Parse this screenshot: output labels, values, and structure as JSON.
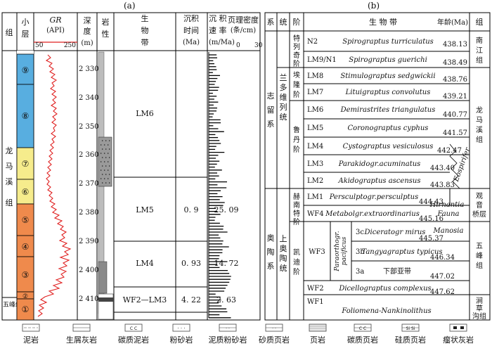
{
  "panel_a": {
    "label": "(a)",
    "headers": {
      "group": "组",
      "layer": [
        "小",
        "层"
      ],
      "gr": "GR",
      "gr_unit": "(API)",
      "gr_min": "50",
      "gr_max": "250",
      "depth": [
        "深",
        "度",
        "(m)"
      ],
      "lith": [
        "岩",
        "性"
      ],
      "biozone": [
        "生",
        "物",
        "带"
      ],
      "dep_time": [
        "沉积",
        "时间",
        "(Ma)"
      ],
      "dep_rate": [
        "沉 积",
        "速 率",
        "(m/Ma)"
      ],
      "lam": [
        "页理密度",
        "(条/cm)"
      ],
      "lam_min": "0",
      "lam_max": "30"
    },
    "group_longmaxi": [
      "龙",
      "马",
      "溪",
      "组"
    ],
    "group_wufeng": "五峰组",
    "layers": [
      "⑨",
      "⑧",
      "⑦",
      "⑥",
      "⑤",
      "④",
      "③",
      "②",
      "①"
    ],
    "depth_ticks": [
      "2 330",
      "2 340",
      "2 350",
      "2 360",
      "2 370",
      "2 380",
      "2 390",
      "2 400",
      "2 410"
    ],
    "zones": [
      {
        "name": "LM6",
        "time": "",
        "rate": ""
      },
      {
        "name": "LM5",
        "time": "0. 9",
        "rate": "25. 09"
      },
      {
        "name": "LM4",
        "time": "0. 93",
        "rate": "14. 72"
      },
      {
        "name": "WF2—LM3",
        "time": "4. 22",
        "rate": "2. 63"
      }
    ]
  },
  "panel_b": {
    "label": "(b)",
    "headers": {
      "system": "系",
      "series": "统",
      "stage": "阶",
      "zone": "生 物 带",
      "age": "年龄(Ma)",
      "group": "组"
    },
    "systems": {
      "silurian": [
        "志",
        "留",
        "系"
      ],
      "ordovician": [
        "奥",
        "陶",
        "系"
      ]
    },
    "series": {
      "llandovery": [
        "兰",
        "多",
        "维",
        "列",
        "统"
      ],
      "upper_ord": [
        "上",
        "奥",
        "陶",
        "统"
      ]
    },
    "stages": {
      "telychian": [
        "特",
        "列",
        "奇",
        "阶"
      ],
      "aeronian": [
        "埃",
        "隆",
        "阶"
      ],
      "rhuddanian": [
        "鲁",
        "丹",
        "阶"
      ],
      "hirnantian": [
        "赫",
        "南",
        "特",
        "阶"
      ],
      "katian": [
        "凯",
        "迪",
        "阶"
      ]
    },
    "zones": [
      {
        "code": "N2",
        "name": "Spirograptus turriculatus",
        "age": "438.13"
      },
      {
        "code": "LM9/N1",
        "name": "Spirograptus guerichi",
        "age": "438.49"
      },
      {
        "code": "LM8",
        "name": "Stimulograptus sedgwickii",
        "age": "438.76"
      },
      {
        "code": "LM7",
        "name": "Lituigraptus convolutus",
        "age": "439.21"
      },
      {
        "code": "LM6",
        "name": "Demirastrites triangulatus",
        "age": "440.77"
      },
      {
        "code": "LM5",
        "name": "Coronograptus cyphus",
        "age": "441.57"
      },
      {
        "code": "LM4",
        "name": "Cystograptus vesiculosus",
        "age": "442.47"
      },
      {
        "code": "LM3",
        "name": "Parakidogr.acuminatus",
        "age": "443.40"
      },
      {
        "code": "LM2",
        "name": "Akidograptus ascensus",
        "age": "443.83"
      },
      {
        "code": "LM1",
        "name": "Persculptogr.persculptus",
        "age": "444.43"
      },
      {
        "code": "WF4",
        "name": "Metabolgr.extraordinarius",
        "age": "445.16"
      },
      {
        "code": "3c",
        "name": "Diceratogr mirus",
        "age": "445.37"
      },
      {
        "code": "3b",
        "name": "Tangyagraptus typicus",
        "age": "446.34"
      },
      {
        "code": "3a",
        "name": "下部亚带",
        "age": "447.02"
      },
      {
        "code": "WF2",
        "name": "Dicellograptus complexus",
        "age": "447.62"
      },
      {
        "code": "WF1",
        "name": "Foliomena-Nankinolithus",
        "age": ""
      }
    ],
    "wf3": "WF3",
    "paraorthogr": [
      "Paraorthogr.",
      "pacificus"
    ],
    "hirnantia": [
      "Hirnantia",
      "Fauna"
    ],
    "manosia": "Manosia",
    "eospirifer": "Eospirifer",
    "groups": {
      "nanjiang": [
        "南",
        "江",
        "组"
      ],
      "longmaxi": [
        "龙",
        "马",
        "溪",
        "组"
      ],
      "guanyinqiao": [
        "观",
        "音",
        "桥层"
      ],
      "wufeng": [
        "五",
        "峰",
        "组"
      ],
      "jiancaogou": [
        "涧",
        "草",
        "沟组"
      ]
    }
  },
  "legend": [
    "泥岩",
    "生屑灰岩",
    "碳质泥岩",
    "粉砂岩",
    "泥质粉砂岩",
    "砂质页岩",
    "页岩",
    "碳质页岩",
    "硅质页岩",
    "瘤状灰岩"
  ],
  "colors": {
    "blue": "#58aee0",
    "yellow": "#f6ec8c",
    "orange": "#ef8a4c",
    "gr_line": "#e02020"
  }
}
